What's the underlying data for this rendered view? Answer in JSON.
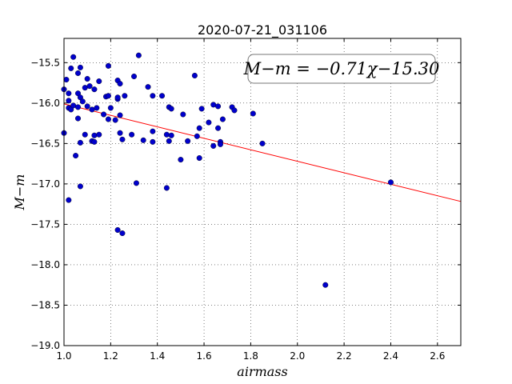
{
  "chart_data": {
    "type": "scatter",
    "title": "2020-07-21_031106",
    "xlabel": "airmass",
    "ylabel": "M−m",
    "xlim": [
      1.0,
      2.7
    ],
    "ylim": [
      -19.0,
      -15.2
    ],
    "y_inverted_display": true,
    "grid": true,
    "x_ticks": [
      "1.0",
      "1.2",
      "1.4",
      "1.6",
      "1.8",
      "2.0",
      "2.2",
      "2.4",
      "2.6"
    ],
    "y_ticks": [
      "−15.5",
      "−16.0",
      "−16.5",
      "−17.0",
      "−17.5",
      "−18.0",
      "−18.5",
      "−19.0"
    ],
    "annotation": "M−m = −0.71χ−15.30",
    "fit": {
      "slope": -0.71,
      "intercept": -15.3,
      "color": "#ff0000"
    },
    "point_color": "#0000cc",
    "points": [
      [
        1.0,
        -15.83
      ],
      [
        1.0,
        -16.37
      ],
      [
        1.01,
        -15.71
      ],
      [
        1.02,
        -15.88
      ],
      [
        1.02,
        -16.06
      ],
      [
        1.02,
        -15.97
      ],
      [
        1.03,
        -15.57
      ],
      [
        1.03,
        -16.08
      ],
      [
        1.04,
        -15.43
      ],
      [
        1.04,
        -16.03
      ],
      [
        1.05,
        -16.65
      ],
      [
        1.06,
        -16.19
      ],
      [
        1.06,
        -16.05
      ],
      [
        1.06,
        -15.88
      ],
      [
        1.06,
        -15.63
      ],
      [
        1.07,
        -16.49
      ],
      [
        1.07,
        -15.93
      ],
      [
        1.07,
        -15.56
      ],
      [
        1.08,
        -15.98
      ],
      [
        1.09,
        -16.39
      ],
      [
        1.09,
        -15.81
      ],
      [
        1.1,
        -16.04
      ],
      [
        1.1,
        -15.7
      ],
      [
        1.11,
        -15.79
      ],
      [
        1.12,
        -16.47
      ],
      [
        1.12,
        -16.08
      ],
      [
        1.13,
        -16.4
      ],
      [
        1.13,
        -15.83
      ],
      [
        1.13,
        -16.48
      ],
      [
        1.14,
        -16.06
      ],
      [
        1.15,
        -16.39
      ],
      [
        1.15,
        -15.73
      ],
      [
        1.17,
        -16.14
      ],
      [
        1.18,
        -15.92
      ],
      [
        1.19,
        -15.91
      ],
      [
        1.19,
        -16.2
      ],
      [
        1.19,
        -15.54
      ],
      [
        1.2,
        -16.06
      ],
      [
        1.22,
        -16.21
      ],
      [
        1.23,
        -15.72
      ],
      [
        1.23,
        -15.95
      ],
      [
        1.23,
        -15.93
      ],
      [
        1.24,
        -15.76
      ],
      [
        1.24,
        -16.15
      ],
      [
        1.24,
        -16.37
      ],
      [
        1.25,
        -16.45
      ],
      [
        1.26,
        -15.91
      ],
      [
        1.29,
        -16.39
      ],
      [
        1.3,
        -15.67
      ],
      [
        1.32,
        -15.41
      ],
      [
        1.34,
        -16.46
      ],
      [
        1.36,
        -15.8
      ],
      [
        1.38,
        -15.91
      ],
      [
        1.38,
        -16.35
      ],
      [
        1.38,
        -16.48
      ],
      [
        1.42,
        -15.91
      ],
      [
        1.44,
        -16.39
      ],
      [
        1.45,
        -16.47
      ],
      [
        1.45,
        -16.05
      ],
      [
        1.46,
        -16.07
      ],
      [
        1.46,
        -16.4
      ],
      [
        1.5,
        -16.7
      ],
      [
        1.51,
        -16.14
      ],
      [
        1.53,
        -16.47
      ],
      [
        1.56,
        -15.66
      ],
      [
        1.57,
        -16.41
      ],
      [
        1.58,
        -16.68
      ],
      [
        1.58,
        -16.31
      ],
      [
        1.59,
        -16.07
      ],
      [
        1.62,
        -16.24
      ],
      [
        1.64,
        -16.02
      ],
      [
        1.64,
        -16.53
      ],
      [
        1.66,
        -16.04
      ],
      [
        1.66,
        -16.31
      ],
      [
        1.67,
        -16.48
      ],
      [
        1.67,
        -16.51
      ],
      [
        1.68,
        -16.2
      ],
      [
        1.72,
        -16.05
      ],
      [
        1.73,
        -16.09
      ],
      [
        1.81,
        -16.13
      ],
      [
        1.85,
        -16.5
      ],
      [
        1.02,
        -17.2
      ],
      [
        1.07,
        -17.03
      ],
      [
        1.31,
        -16.99
      ],
      [
        1.44,
        -17.05
      ],
      [
        1.23,
        -17.57
      ],
      [
        1.25,
        -17.61
      ],
      [
        2.4,
        -16.98
      ],
      [
        2.12,
        -18.25
      ]
    ]
  }
}
